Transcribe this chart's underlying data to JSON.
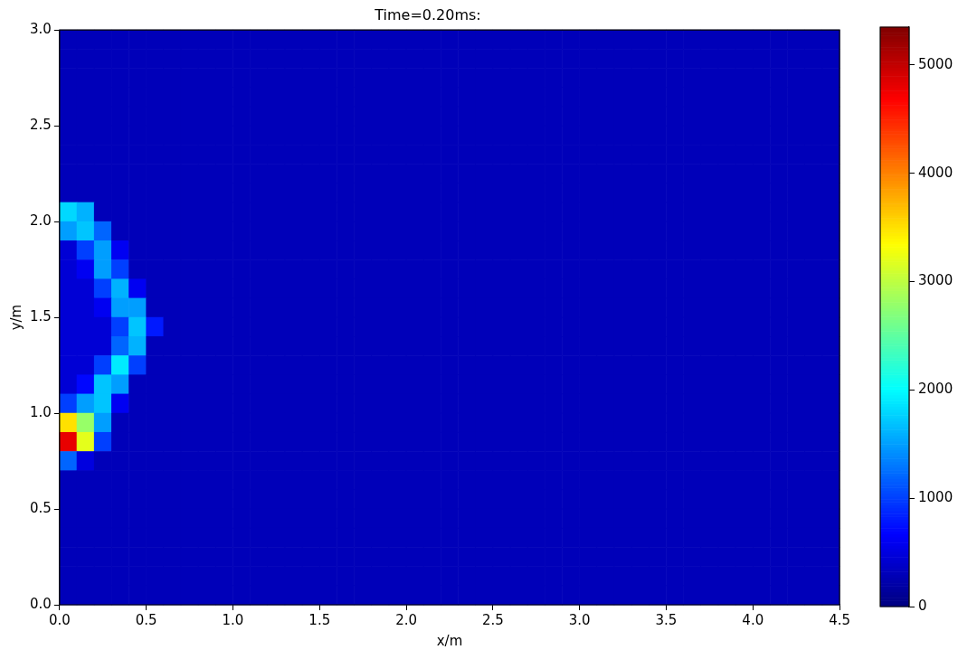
{
  "chart_data": {
    "type": "heatmap",
    "title": "Time=0.20ms:",
    "xlabel": "x/m",
    "ylabel": "y/m",
    "xlim": [
      0,
      4.5
    ],
    "ylim": [
      0,
      3
    ],
    "xticks": [
      {
        "value": 0,
        "label": "0.0"
      },
      0.5,
      {
        "value": 1,
        "label": "1.0"
      },
      1.5,
      {
        "value": 2,
        "label": "2.0"
      },
      2.5,
      {
        "value": 3,
        "label": "3.0"
      },
      3.5,
      {
        "value": 4,
        "label": "4.0"
      },
      4.5
    ],
    "yticks": [
      {
        "value": 0,
        "label": "0.0"
      },
      0.5,
      {
        "value": 1,
        "label": "1.0"
      },
      1.5,
      {
        "value": 2,
        "label": "2.0"
      },
      2.5,
      {
        "value": 3,
        "label": "3.0"
      }
    ],
    "clim": [
      0,
      5350
    ],
    "cticks": [
      0,
      1000,
      2000,
      3000,
      4000,
      5000
    ],
    "cells": [
      [
        300,
        300,
        300,
        300,
        300,
        300,
        300,
        300,
        300,
        300,
        300,
        300,
        300,
        300,
        300,
        300,
        300,
        300,
        300,
        300,
        300,
        300,
        300,
        300,
        300,
        300,
        300,
        300,
        300,
        300,
        300,
        300,
        300,
        300,
        300,
        300,
        300,
        300,
        300,
        300,
        300,
        300,
        300,
        300,
        300
      ],
      [
        300,
        300,
        300,
        300,
        300,
        300,
        300,
        300,
        300,
        300,
        300,
        300,
        300,
        300,
        300,
        300,
        300,
        300,
        300,
        300,
        300,
        300,
        300,
        300,
        300,
        300,
        300,
        300,
        300,
        300,
        300,
        300,
        300,
        300,
        300,
        300,
        300,
        300,
        300,
        300,
        300,
        300,
        300,
        300,
        300
      ],
      [
        300,
        300,
        300,
        300,
        300,
        300,
        300,
        300,
        300,
        300,
        300,
        300,
        300,
        300,
        300,
        300,
        300,
        300,
        300,
        300,
        300,
        300,
        300,
        300,
        300,
        300,
        300,
        300,
        300,
        300,
        300,
        300,
        300,
        300,
        300,
        300,
        300,
        300,
        300,
        300,
        300,
        300,
        300,
        300,
        300
      ],
      [
        300,
        300,
        300,
        300,
        300,
        300,
        300,
        300,
        300,
        300,
        300,
        300,
        300,
        300,
        300,
        300,
        300,
        300,
        300,
        300,
        300,
        300,
        300,
        300,
        300,
        300,
        300,
        300,
        300,
        300,
        300,
        300,
        300,
        300,
        300,
        300,
        300,
        300,
        300,
        300,
        300,
        300,
        300,
        300,
        300
      ],
      [
        300,
        300,
        300,
        300,
        300,
        300,
        300,
        300,
        300,
        300,
        300,
        300,
        300,
        300,
        300,
        300,
        300,
        300,
        300,
        300,
        300,
        300,
        300,
        300,
        300,
        300,
        300,
        300,
        300,
        300,
        300,
        300,
        300,
        300,
        300,
        300,
        300,
        300,
        300,
        300,
        300,
        300,
        300,
        300,
        300
      ],
      [
        300,
        300,
        300,
        300,
        300,
        300,
        300,
        300,
        300,
        300,
        300,
        300,
        300,
        300,
        300,
        300,
        300,
        300,
        300,
        300,
        300,
        300,
        300,
        300,
        300,
        300,
        300,
        300,
        300,
        300,
        300,
        300,
        300,
        300,
        300,
        300,
        300,
        300,
        300,
        300,
        300,
        300,
        300,
        300,
        300
      ],
      [
        300,
        300,
        300,
        300,
        300,
        300,
        300,
        300,
        300,
        300,
        300,
        300,
        300,
        300,
        300,
        300,
        300,
        300,
        300,
        300,
        300,
        300,
        300,
        300,
        300,
        300,
        300,
        300,
        300,
        300,
        300,
        300,
        300,
        300,
        300,
        300,
        300,
        300,
        300,
        300,
        300,
        300,
        300,
        300,
        300
      ],
      [
        300,
        300,
        300,
        300,
        300,
        300,
        300,
        300,
        300,
        300,
        300,
        300,
        300,
        300,
        300,
        300,
        300,
        300,
        300,
        300,
        300,
        300,
        300,
        300,
        300,
        300,
        300,
        300,
        300,
        300,
        300,
        300,
        300,
        300,
        300,
        300,
        300,
        300,
        300,
        300,
        300,
        300,
        300,
        300,
        300
      ],
      [
        300,
        300,
        300,
        300,
        300,
        300,
        300,
        300,
        300,
        300,
        300,
        300,
        300,
        300,
        300,
        300,
        300,
        300,
        300,
        300,
        300,
        300,
        300,
        300,
        300,
        300,
        300,
        300,
        300,
        300,
        300,
        300,
        300,
        300,
        300,
        300,
        300,
        300,
        300,
        300,
        300,
        300,
        300,
        300,
        300
      ],
      [
        1800,
        1600,
        300,
        300,
        300,
        300,
        300,
        300,
        300,
        300,
        300,
        300,
        300,
        300,
        300,
        300,
        300,
        300,
        300,
        300,
        300,
        300,
        300,
        300,
        300,
        300,
        300,
        300,
        300,
        300,
        300,
        300,
        300,
        300,
        300,
        300,
        300,
        300,
        300,
        300,
        300,
        300,
        300,
        300,
        300
      ],
      [
        1500,
        1700,
        1200,
        300,
        300,
        300,
        300,
        300,
        300,
        300,
        300,
        300,
        300,
        300,
        300,
        300,
        300,
        300,
        300,
        300,
        300,
        300,
        300,
        300,
        300,
        300,
        300,
        300,
        300,
        300,
        300,
        300,
        300,
        300,
        300,
        300,
        300,
        300,
        300,
        300,
        300,
        300,
        300,
        300,
        300
      ],
      [
        450,
        1000,
        1500,
        600,
        300,
        300,
        300,
        300,
        300,
        300,
        300,
        300,
        300,
        300,
        300,
        300,
        300,
        300,
        300,
        300,
        300,
        300,
        300,
        300,
        300,
        300,
        300,
        300,
        300,
        300,
        300,
        300,
        300,
        300,
        300,
        300,
        300,
        300,
        300,
        300,
        300,
        300,
        300,
        300,
        300
      ],
      [
        450,
        600,
        1500,
        1000,
        300,
        300,
        300,
        300,
        300,
        300,
        300,
        300,
        300,
        300,
        300,
        300,
        300,
        300,
        300,
        300,
        300,
        300,
        300,
        300,
        300,
        300,
        300,
        300,
        300,
        300,
        300,
        300,
        300,
        300,
        300,
        300,
        300,
        300,
        300,
        300,
        300,
        300,
        300,
        300,
        300
      ],
      [
        450,
        450,
        1000,
        1600,
        600,
        300,
        300,
        300,
        300,
        300,
        300,
        300,
        300,
        300,
        300,
        300,
        300,
        300,
        300,
        300,
        300,
        300,
        300,
        300,
        300,
        300,
        300,
        300,
        300,
        300,
        300,
        300,
        300,
        300,
        300,
        300,
        300,
        300,
        300,
        300,
        300,
        300,
        300,
        300,
        300
      ],
      [
        450,
        450,
        600,
        1500,
        1500,
        300,
        300,
        300,
        300,
        300,
        300,
        300,
        300,
        300,
        300,
        300,
        300,
        300,
        300,
        300,
        300,
        300,
        300,
        300,
        300,
        300,
        300,
        300,
        300,
        300,
        300,
        300,
        300,
        300,
        300,
        300,
        300,
        300,
        300,
        300,
        300,
        300,
        300,
        300,
        300
      ],
      [
        450,
        450,
        450,
        1000,
        1700,
        800,
        300,
        300,
        300,
        300,
        300,
        300,
        300,
        300,
        300,
        300,
        300,
        300,
        300,
        300,
        300,
        300,
        300,
        300,
        300,
        300,
        300,
        300,
        300,
        300,
        300,
        300,
        300,
        300,
        300,
        300,
        300,
        300,
        300,
        300,
        300,
        300,
        300,
        300,
        300
      ],
      [
        450,
        450,
        450,
        1200,
        1600,
        300,
        300,
        300,
        300,
        300,
        300,
        300,
        300,
        300,
        300,
        300,
        300,
        300,
        300,
        300,
        300,
        300,
        300,
        300,
        300,
        300,
        300,
        300,
        300,
        300,
        300,
        300,
        300,
        300,
        300,
        300,
        300,
        300,
        300,
        300,
        300,
        300,
        300,
        300,
        300
      ],
      [
        450,
        450,
        1000,
        1900,
        1000,
        300,
        300,
        300,
        300,
        300,
        300,
        300,
        300,
        300,
        300,
        300,
        300,
        300,
        300,
        300,
        300,
        300,
        300,
        300,
        300,
        300,
        300,
        300,
        300,
        300,
        300,
        300,
        300,
        300,
        300,
        300,
        300,
        300,
        300,
        300,
        300,
        300,
        300,
        300,
        300
      ],
      [
        450,
        700,
        1700,
        1500,
        300,
        300,
        300,
        300,
        300,
        300,
        300,
        300,
        300,
        300,
        300,
        300,
        300,
        300,
        300,
        300,
        300,
        300,
        300,
        300,
        300,
        300,
        300,
        300,
        300,
        300,
        300,
        300,
        300,
        300,
        300,
        300,
        300,
        300,
        300,
        300,
        300,
        300,
        300,
        300,
        300
      ],
      [
        1000,
        1500,
        1700,
        600,
        300,
        300,
        300,
        300,
        300,
        300,
        300,
        300,
        300,
        300,
        300,
        300,
        300,
        300,
        300,
        300,
        300,
        300,
        300,
        300,
        300,
        300,
        300,
        300,
        300,
        300,
        300,
        300,
        300,
        300,
        300,
        300,
        300,
        300,
        300,
        300,
        300,
        300,
        300,
        300,
        300
      ],
      [
        3500,
        2800,
        1500,
        300,
        300,
        300,
        300,
        300,
        300,
        300,
        300,
        300,
        300,
        300,
        300,
        300,
        300,
        300,
        300,
        300,
        300,
        300,
        300,
        300,
        300,
        300,
        300,
        300,
        300,
        300,
        300,
        300,
        300,
        300,
        300,
        300,
        300,
        300,
        300,
        300,
        300,
        300,
        300,
        300,
        300
      ],
      [
        4800,
        3200,
        1000,
        300,
        300,
        300,
        300,
        300,
        300,
        300,
        300,
        300,
        300,
        300,
        300,
        300,
        300,
        300,
        300,
        300,
        300,
        300,
        300,
        300,
        300,
        300,
        300,
        300,
        300,
        300,
        300,
        300,
        300,
        300,
        300,
        300,
        300,
        300,
        300,
        300,
        300,
        300,
        300,
        300,
        300
      ],
      [
        1200,
        500,
        300,
        300,
        300,
        300,
        300,
        300,
        300,
        300,
        300,
        300,
        300,
        300,
        300,
        300,
        300,
        300,
        300,
        300,
        300,
        300,
        300,
        300,
        300,
        300,
        300,
        300,
        300,
        300,
        300,
        300,
        300,
        300,
        300,
        300,
        300,
        300,
        300,
        300,
        300,
        300,
        300,
        300,
        300
      ],
      [
        300,
        300,
        300,
        300,
        300,
        300,
        300,
        300,
        300,
        300,
        300,
        300,
        300,
        300,
        300,
        300,
        300,
        300,
        300,
        300,
        300,
        300,
        300,
        300,
        300,
        300,
        300,
        300,
        300,
        300,
        300,
        300,
        300,
        300,
        300,
        300,
        300,
        300,
        300,
        300,
        300,
        300,
        300,
        300,
        300
      ],
      [
        300,
        300,
        300,
        300,
        300,
        300,
        300,
        300,
        300,
        300,
        300,
        300,
        300,
        300,
        300,
        300,
        300,
        300,
        300,
        300,
        300,
        300,
        300,
        300,
        300,
        300,
        300,
        300,
        300,
        300,
        300,
        300,
        300,
        300,
        300,
        300,
        300,
        300,
        300,
        300,
        300,
        300,
        300,
        300,
        300
      ],
      [
        300,
        300,
        300,
        300,
        300,
        300,
        300,
        300,
        300,
        300,
        300,
        300,
        300,
        300,
        300,
        300,
        300,
        300,
        300,
        300,
        300,
        300,
        300,
        300,
        300,
        300,
        300,
        300,
        300,
        300,
        300,
        300,
        300,
        300,
        300,
        300,
        300,
        300,
        300,
        300,
        300,
        300,
        300,
        300,
        300
      ],
      [
        300,
        300,
        300,
        300,
        300,
        300,
        300,
        300,
        300,
        300,
        300,
        300,
        300,
        300,
        300,
        300,
        300,
        300,
        300,
        300,
        300,
        300,
        300,
        300,
        300,
        300,
        300,
        300,
        300,
        300,
        300,
        300,
        300,
        300,
        300,
        300,
        300,
        300,
        300,
        300,
        300,
        300,
        300,
        300,
        300
      ],
      [
        300,
        300,
        300,
        300,
        300,
        300,
        300,
        300,
        300,
        300,
        300,
        300,
        300,
        300,
        300,
        300,
        300,
        300,
        300,
        300,
        300,
        300,
        300,
        300,
        300,
        300,
        300,
        300,
        300,
        300,
        300,
        300,
        300,
        300,
        300,
        300,
        300,
        300,
        300,
        300,
        300,
        300,
        300,
        300,
        300
      ],
      [
        300,
        300,
        300,
        300,
        300,
        300,
        300,
        300,
        300,
        300,
        300,
        300,
        300,
        300,
        300,
        300,
        300,
        300,
        300,
        300,
        300,
        300,
        300,
        300,
        300,
        300,
        300,
        300,
        300,
        300,
        300,
        300,
        300,
        300,
        300,
        300,
        300,
        300,
        300,
        300,
        300,
        300,
        300,
        300,
        300
      ],
      [
        300,
        300,
        300,
        300,
        300,
        300,
        300,
        300,
        300,
        300,
        300,
        300,
        300,
        300,
        300,
        300,
        300,
        300,
        300,
        300,
        300,
        300,
        300,
        300,
        300,
        300,
        300,
        300,
        300,
        300,
        300,
        300,
        300,
        300,
        300,
        300,
        300,
        300,
        300,
        300,
        300,
        300,
        300,
        300,
        300
      ]
    ]
  }
}
